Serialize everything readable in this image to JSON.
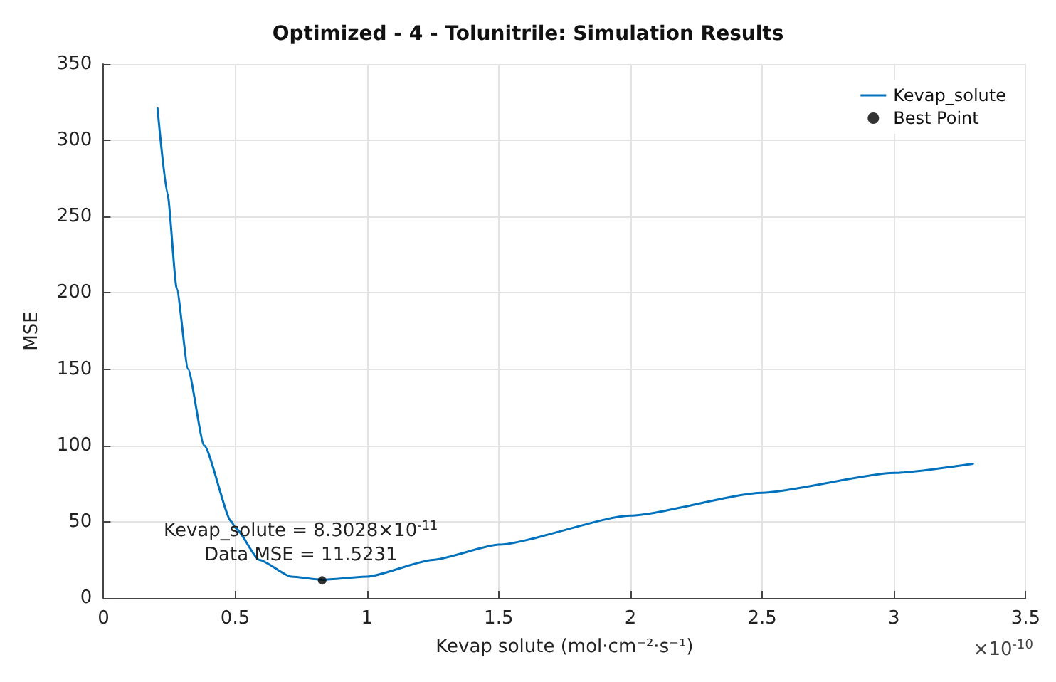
{
  "chart_data": {
    "type": "line",
    "title": "Optimized - 4 - Tolunitrile: Simulation Results",
    "xlabel": "Kevap solute (mol·cm⁻²·s⁻¹)",
    "ylabel": "MSE",
    "xlim": [
      0,
      3.5
    ],
    "xticks": [
      0,
      0.5,
      1,
      1.5,
      2,
      2.5,
      3,
      3.5
    ],
    "ylim": [
      0,
      350
    ],
    "yticks": [
      0,
      50,
      100,
      150,
      200,
      250,
      300,
      350
    ],
    "grid": true,
    "legend": "top right",
    "series": [
      {
        "name": "Kevap_solute",
        "type": "line",
        "color": "#0072bd",
        "marker": "none",
        "x": [
          0.205,
          0.243,
          0.278,
          0.321,
          0.382,
          0.486,
          0.5,
          0.592,
          0.713,
          0.83028,
          1.0,
          1.25,
          1.5,
          2.0,
          2.5,
          3.0,
          3.3
        ],
        "values": [
          321,
          265,
          203,
          150,
          100,
          50,
          46,
          25,
          14,
          12,
          14,
          25,
          35,
          54,
          69,
          82,
          88
        ]
      },
      {
        "name": "Best Point",
        "type": "scatter",
        "color": "#000000",
        "marker": "circle",
        "x": [
          0.83
        ],
        "values": [
          11.5
        ]
      }
    ],
    "annotations": [
      {
        "text": "Kevap_solute = 8.3028×10$^{-11}$",
        "x": 0.83028,
        "y": 11.5231
      },
      {
        "text": "Data MSE = 11.5231",
        "x": 0.83028,
        "y": 11.5231
      },
      "×10$^{-10}$"
    ]
  }
}
